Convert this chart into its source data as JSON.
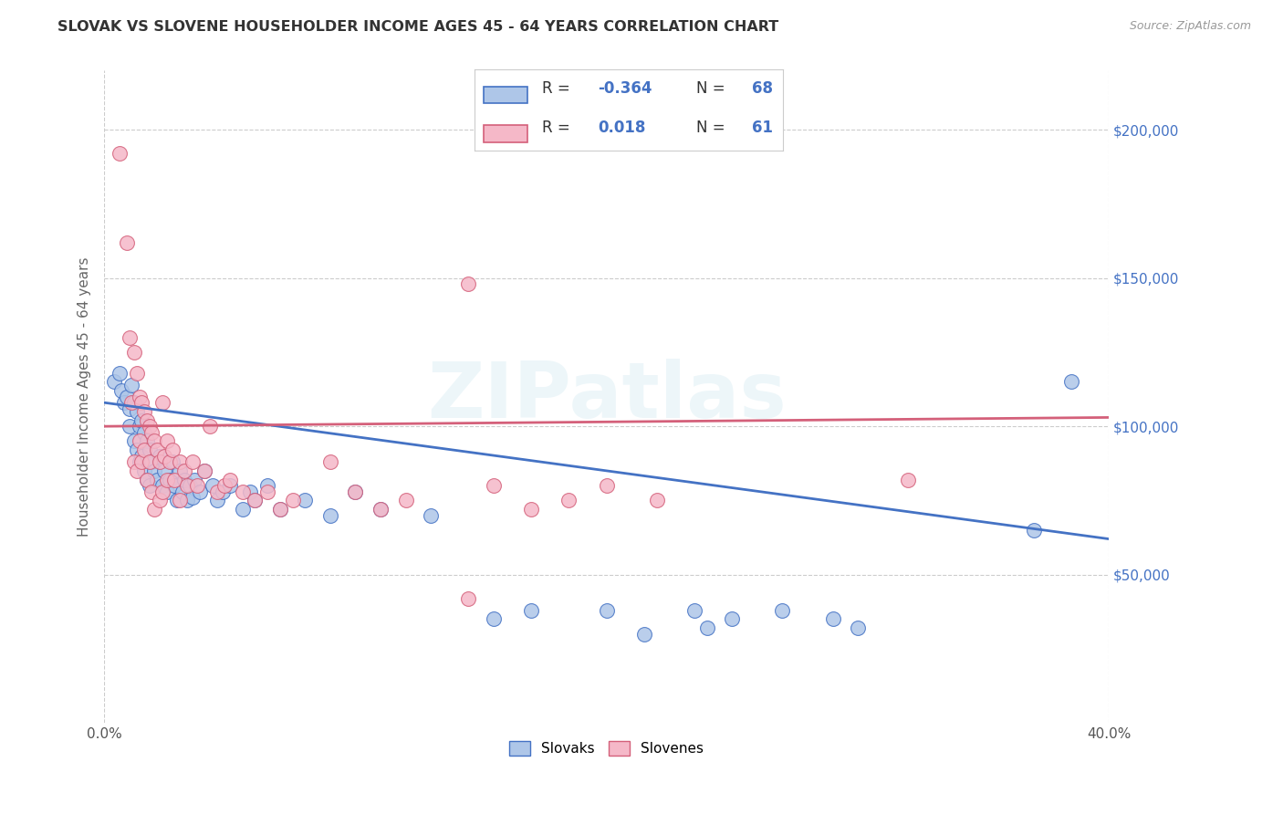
{
  "title": "SLOVAK VS SLOVENE HOUSEHOLDER INCOME AGES 45 - 64 YEARS CORRELATION CHART",
  "source": "Source: ZipAtlas.com",
  "ylabel": "Householder Income Ages 45 - 64 years",
  "xlim": [
    0.0,
    0.4
  ],
  "ylim": [
    0,
    220000
  ],
  "slovak_color": "#aec6e8",
  "slovene_color": "#f5b8c8",
  "slovak_line_color": "#4472c4",
  "slovene_line_color": "#d4607a",
  "R_slovak": -0.364,
  "N_slovak": 68,
  "R_slovene": 0.018,
  "N_slovene": 61,
  "watermark": "ZIPatlas",
  "background_color": "#ffffff",
  "grid_color": "#cccccc",
  "slovak_points": [
    [
      0.004,
      115000
    ],
    [
      0.006,
      118000
    ],
    [
      0.007,
      112000
    ],
    [
      0.008,
      108000
    ],
    [
      0.009,
      110000
    ],
    [
      0.01,
      106000
    ],
    [
      0.01,
      100000
    ],
    [
      0.011,
      114000
    ],
    [
      0.012,
      108000
    ],
    [
      0.012,
      95000
    ],
    [
      0.013,
      105000
    ],
    [
      0.013,
      92000
    ],
    [
      0.014,
      100000
    ],
    [
      0.014,
      88000
    ],
    [
      0.015,
      102000
    ],
    [
      0.015,
      90000
    ],
    [
      0.016,
      98000
    ],
    [
      0.016,
      85000
    ],
    [
      0.017,
      95000
    ],
    [
      0.017,
      82000
    ],
    [
      0.018,
      92000
    ],
    [
      0.018,
      80000
    ],
    [
      0.019,
      88000
    ],
    [
      0.02,
      85000
    ],
    [
      0.021,
      82000
    ],
    [
      0.022,
      90000
    ],
    [
      0.023,
      80000
    ],
    [
      0.024,
      85000
    ],
    [
      0.025,
      78000
    ],
    [
      0.026,
      82000
    ],
    [
      0.027,
      88000
    ],
    [
      0.028,
      80000
    ],
    [
      0.029,
      75000
    ],
    [
      0.03,
      85000
    ],
    [
      0.031,
      78000
    ],
    [
      0.032,
      82000
    ],
    [
      0.033,
      75000
    ],
    [
      0.034,
      80000
    ],
    [
      0.035,
      76000
    ],
    [
      0.036,
      82000
    ],
    [
      0.038,
      78000
    ],
    [
      0.04,
      85000
    ],
    [
      0.043,
      80000
    ],
    [
      0.045,
      75000
    ],
    [
      0.047,
      78000
    ],
    [
      0.05,
      80000
    ],
    [
      0.055,
      72000
    ],
    [
      0.058,
      78000
    ],
    [
      0.06,
      75000
    ],
    [
      0.065,
      80000
    ],
    [
      0.07,
      72000
    ],
    [
      0.08,
      75000
    ],
    [
      0.09,
      70000
    ],
    [
      0.1,
      78000
    ],
    [
      0.11,
      72000
    ],
    [
      0.13,
      70000
    ],
    [
      0.155,
      35000
    ],
    [
      0.17,
      38000
    ],
    [
      0.2,
      38000
    ],
    [
      0.215,
      30000
    ],
    [
      0.235,
      38000
    ],
    [
      0.24,
      32000
    ],
    [
      0.25,
      35000
    ],
    [
      0.27,
      38000
    ],
    [
      0.29,
      35000
    ],
    [
      0.3,
      32000
    ],
    [
      0.37,
      65000
    ],
    [
      0.385,
      115000
    ]
  ],
  "slovene_points": [
    [
      0.006,
      192000
    ],
    [
      0.009,
      162000
    ],
    [
      0.01,
      130000
    ],
    [
      0.011,
      108000
    ],
    [
      0.012,
      125000
    ],
    [
      0.012,
      88000
    ],
    [
      0.013,
      118000
    ],
    [
      0.013,
      85000
    ],
    [
      0.014,
      110000
    ],
    [
      0.014,
      95000
    ],
    [
      0.015,
      108000
    ],
    [
      0.015,
      88000
    ],
    [
      0.016,
      105000
    ],
    [
      0.016,
      92000
    ],
    [
      0.017,
      102000
    ],
    [
      0.017,
      82000
    ],
    [
      0.018,
      100000
    ],
    [
      0.018,
      88000
    ],
    [
      0.019,
      98000
    ],
    [
      0.019,
      78000
    ],
    [
      0.02,
      95000
    ],
    [
      0.02,
      72000
    ],
    [
      0.021,
      92000
    ],
    [
      0.022,
      88000
    ],
    [
      0.022,
      75000
    ],
    [
      0.023,
      108000
    ],
    [
      0.023,
      78000
    ],
    [
      0.024,
      90000
    ],
    [
      0.025,
      95000
    ],
    [
      0.025,
      82000
    ],
    [
      0.026,
      88000
    ],
    [
      0.027,
      92000
    ],
    [
      0.028,
      82000
    ],
    [
      0.03,
      88000
    ],
    [
      0.03,
      75000
    ],
    [
      0.032,
      85000
    ],
    [
      0.033,
      80000
    ],
    [
      0.035,
      88000
    ],
    [
      0.037,
      80000
    ],
    [
      0.04,
      85000
    ],
    [
      0.042,
      100000
    ],
    [
      0.045,
      78000
    ],
    [
      0.048,
      80000
    ],
    [
      0.05,
      82000
    ],
    [
      0.055,
      78000
    ],
    [
      0.06,
      75000
    ],
    [
      0.065,
      78000
    ],
    [
      0.07,
      72000
    ],
    [
      0.075,
      75000
    ],
    [
      0.09,
      88000
    ],
    [
      0.1,
      78000
    ],
    [
      0.11,
      72000
    ],
    [
      0.12,
      75000
    ],
    [
      0.145,
      148000
    ],
    [
      0.155,
      80000
    ],
    [
      0.17,
      72000
    ],
    [
      0.185,
      75000
    ],
    [
      0.2,
      80000
    ],
    [
      0.22,
      75000
    ],
    [
      0.32,
      82000
    ],
    [
      0.145,
      42000
    ]
  ]
}
